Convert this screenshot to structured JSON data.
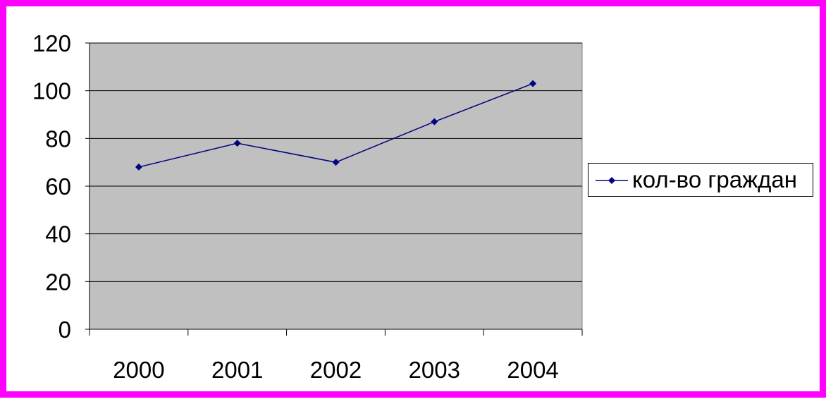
{
  "chart_data": {
    "type": "line",
    "categories": [
      "2000",
      "2001",
      "2002",
      "2003",
      "2004"
    ],
    "series": [
      {
        "name": "кол-во граждан",
        "values": [
          68,
          78,
          70,
          87,
          103
        ]
      }
    ],
    "ylim": [
      0,
      120
    ],
    "yticks": [
      "0",
      "20",
      "40",
      "60",
      "80",
      "100",
      "120"
    ],
    "grid": true,
    "legend": "right",
    "colors": {
      "frame": "#ff00ff",
      "plot_background": "#c0c0c0",
      "series": "#000080",
      "gridline": "#000000"
    }
  }
}
